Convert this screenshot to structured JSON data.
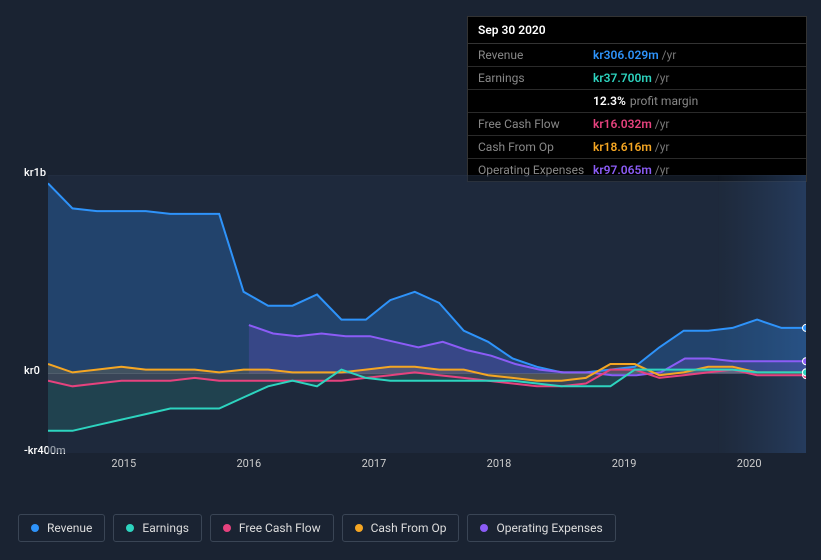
{
  "tooltip": {
    "date": "Sep 30 2020",
    "rows": [
      {
        "label": "Revenue",
        "value": "kr306.029m",
        "suffix": "/yr",
        "color": "#2e93fa"
      },
      {
        "label": "Earnings",
        "value": "kr37.700m",
        "suffix": "/yr",
        "color": "#2dd4bf"
      },
      {
        "label": "Free Cash Flow",
        "value": "kr16.032m",
        "suffix": "/yr",
        "color": "#e6427e"
      },
      {
        "label": "Cash From Op",
        "value": "kr18.616m",
        "suffix": "/yr",
        "color": "#f5a623"
      },
      {
        "label": "Operating Expenses",
        "value": "kr97.065m",
        "suffix": "/yr",
        "color": "#8b5cf6"
      }
    ],
    "profit_margin": {
      "value": "12.3%",
      "label": "profit margin"
    }
  },
  "chart": {
    "type": "area",
    "background_color": "#1a2332",
    "plot_shade": "#223045",
    "grid_color": "#3a4555",
    "y_axis": {
      "labels": [
        "kr1b",
        "kr0",
        "-kr400m"
      ],
      "ticks_y": [
        0,
        0.714,
        1.0
      ]
    },
    "x_axis": {
      "labels": [
        "2015",
        "2016",
        "2017",
        "2018",
        "2019",
        "2020"
      ],
      "positions_x": [
        0.1,
        0.265,
        0.43,
        0.595,
        0.76,
        0.925
      ]
    },
    "series": [
      {
        "name": "Revenue",
        "key": "revenue",
        "color": "#2e93fa",
        "fill_opacity": 0.25,
        "y": [
          0.03,
          0.12,
          0.13,
          0.13,
          0.13,
          0.14,
          0.14,
          0.14,
          0.42,
          0.47,
          0.47,
          0.43,
          0.52,
          0.52,
          0.45,
          0.42,
          0.46,
          0.56,
          0.6,
          0.66,
          0.69,
          0.71,
          0.71,
          0.7,
          0.69,
          0.62,
          0.56,
          0.56,
          0.55,
          0.52,
          0.55,
          0.55
        ]
      },
      {
        "name": "Operating Expenses",
        "key": "opex",
        "color": "#8b5cf6",
        "fill_opacity": 0.2,
        "start_x": 0.265,
        "y": [
          0.54,
          0.57,
          0.58,
          0.57,
          0.58,
          0.58,
          0.6,
          0.62,
          0.6,
          0.63,
          0.65,
          0.68,
          0.7,
          0.71,
          0.71,
          0.72,
          0.72,
          0.71,
          0.66,
          0.66,
          0.67,
          0.67,
          0.67,
          0.67
        ]
      },
      {
        "name": "Cash From Op",
        "key": "cfo",
        "color": "#f5a623",
        "fill_opacity": 0.15,
        "y": [
          0.68,
          0.71,
          0.7,
          0.69,
          0.7,
          0.7,
          0.7,
          0.71,
          0.7,
          0.7,
          0.71,
          0.71,
          0.71,
          0.7,
          0.69,
          0.69,
          0.7,
          0.7,
          0.72,
          0.73,
          0.74,
          0.74,
          0.73,
          0.68,
          0.68,
          0.72,
          0.71,
          0.69,
          0.69,
          0.71,
          0.71,
          0.71
        ]
      },
      {
        "name": "Free Cash Flow",
        "key": "fcf",
        "color": "#e6427e",
        "fill_opacity": 0.15,
        "y": [
          0.74,
          0.76,
          0.75,
          0.74,
          0.74,
          0.74,
          0.73,
          0.74,
          0.74,
          0.74,
          0.74,
          0.74,
          0.74,
          0.73,
          0.72,
          0.71,
          0.72,
          0.73,
          0.74,
          0.75,
          0.76,
          0.76,
          0.75,
          0.7,
          0.7,
          0.73,
          0.72,
          0.71,
          0.7,
          0.72,
          0.72,
          0.72
        ]
      },
      {
        "name": "Earnings",
        "key": "earnings",
        "color": "#2dd4bf",
        "fill_opacity": 0.15,
        "y": [
          0.92,
          0.92,
          0.9,
          0.88,
          0.86,
          0.84,
          0.84,
          0.84,
          0.8,
          0.76,
          0.74,
          0.76,
          0.7,
          0.73,
          0.74,
          0.74,
          0.74,
          0.74,
          0.74,
          0.74,
          0.75,
          0.76,
          0.76,
          0.76,
          0.7,
          0.7,
          0.7,
          0.7,
          0.7,
          0.71,
          0.71,
          0.71
        ]
      }
    ],
    "end_markers": true
  },
  "legend": {
    "items": [
      {
        "label": "Revenue",
        "color": "#2e93fa"
      },
      {
        "label": "Earnings",
        "color": "#2dd4bf"
      },
      {
        "label": "Free Cash Flow",
        "color": "#e6427e"
      },
      {
        "label": "Cash From Op",
        "color": "#f5a623"
      },
      {
        "label": "Operating Expenses",
        "color": "#8b5cf6"
      }
    ]
  }
}
